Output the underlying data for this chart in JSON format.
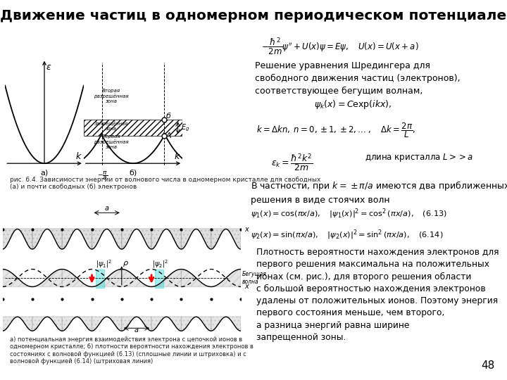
{
  "title": "Движение частиц в одномерном периодическом потенциале",
  "bg_color": "#ffffff",
  "page_number": "48",
  "title_fontsize": 14.5,
  "text_color": "#1a1a1a",
  "formula_top_line1": "$-\\dfrac{\\hbar^2}{2m}\\psi'' + U(x)\\psi = E\\psi, \\quad U(x) = U(x+a)$",
  "text_schrodinger": "Решение уравнения Шредингера для\nсвободного движения частиц (электронов),\nсоответствующее бегущим волнам,",
  "formula_psi_k": "$\\psi_k(x) = C\\exp(ikx),$",
  "formula_k_n": "$k = \\Delta k n, \\; n = 0, \\pm 1, \\pm 2,\\ldots\\; , \\quad \\Delta k = \\dfrac{2\\pi}{L},$",
  "formula_eps_k": "$\\varepsilon_k = \\dfrac{\\hbar^2 k^2}{2m}$",
  "text_crystal_length": "длина кристалла $L{>>}a$",
  "text_particular": "В частности, при $k=\\pm\\pi/a$ имеются два приближенных\nрешения в виде стоячих волн",
  "formula_613": "$\\psi_1(x) = \\cos(\\pi x/a), \\quad |\\psi_1(x)|^2 = \\cos^2(\\pi x/a), \\quad (6.13)$",
  "formula_614": "$\\psi_2(x) = \\sin(\\pi x/a), \\quad |\\psi_2(x)|^2 = \\sin^2(\\pi x/a), \\quad (6.14)$",
  "text_density": "Плотность вероятности нахождения электронов для\nпервого решения максимальна на положительных\nионах (см. рис.), для второго решения области\nс большой вероятностью нахождения электронов\nудалены от положительных ионов. Поэтому энергия\nпервого состояния меньше, чем второго,\nа разница энергий равна ширине\nзапрещенной зоны.",
  "caption_fig64": "рис. 6.4. Зависимости энергии от волнового числа в одномерном кристалле для свободных\n(а) и почти свободных (б) электронов",
  "caption_bottom": "а) потенциальная энергия взаимодействия электрона с цепочкой ионов в\nодномерном кристалле; б) плотности вероятности нахождения электронов в\nсостояниях с волновой функцией (6.13) (сплошные линии и штриховка) и с\nволновой функцией (6.14) (штриховая линия)"
}
